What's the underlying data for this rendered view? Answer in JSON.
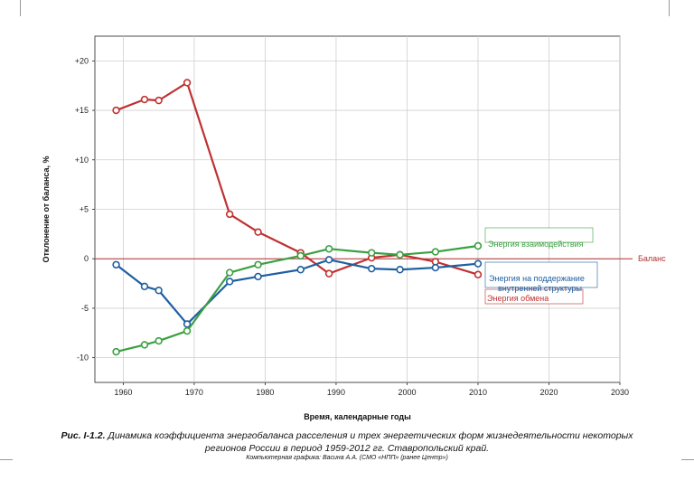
{
  "chart_data": {
    "type": "line",
    "xlabel": "Время, календарные годы",
    "ylabel": "Отклонение от баланса, %",
    "xlim": [
      1956,
      2030
    ],
    "ylim": [
      -12.5,
      22.5
    ],
    "x_ticks": [
      1960,
      1970,
      1980,
      1990,
      2000,
      2010,
      2020,
      2030
    ],
    "y_ticks": [
      {
        "value": 20,
        "label": "+20"
      },
      {
        "value": 15,
        "label": "+15"
      },
      {
        "value": 10,
        "label": "+10"
      },
      {
        "value": 5,
        "label": "+5"
      },
      {
        "value": 0,
        "label": "0"
      },
      {
        "value": -5,
        "label": "-5"
      },
      {
        "value": -10,
        "label": "-10"
      }
    ],
    "grid": true,
    "baseline": {
      "value": 0,
      "label": "Баланс",
      "color": "#b03030"
    },
    "series": [
      {
        "name": "Энергия обмена",
        "color": "#c03030",
        "x": [
          1959,
          1963,
          1965,
          1969,
          1975,
          1979,
          1985,
          1989,
          1995,
          1999,
          2004,
          2010
        ],
        "y": [
          15.0,
          16.1,
          16.0,
          17.8,
          4.5,
          2.7,
          0.6,
          -1.5,
          0.1,
          0.4,
          -0.3,
          -1.6
        ]
      },
      {
        "name": "Энергия на поддержание внутренней структуры",
        "name_lines": [
          "Энергия на поддержание",
          "внутренней структуры"
        ],
        "color": "#1f5fa0",
        "x": [
          1959,
          1963,
          1965,
          1969,
          1975,
          1979,
          1985,
          1989,
          1995,
          1999,
          2004,
          2010
        ],
        "y": [
          -0.6,
          -2.8,
          -3.2,
          -6.6,
          -2.3,
          -1.8,
          -1.1,
          -0.1,
          -1.0,
          -1.1,
          -0.9,
          -0.5
        ]
      },
      {
        "name": "Энергия взаимодействия",
        "color": "#3aa040",
        "x": [
          1959,
          1963,
          1965,
          1969,
          1975,
          1979,
          1985,
          1989,
          1995,
          1999,
          2004,
          2010
        ],
        "y": [
          -9.4,
          -8.7,
          -8.3,
          -7.3,
          -1.4,
          -0.6,
          0.3,
          1.0,
          0.6,
          0.4,
          0.7,
          1.3
        ]
      }
    ]
  },
  "caption": {
    "prefix": "Рис. I-1.2.",
    "line1": "Динамика коэффициента энергобаланса расселения и трех энергетических форм жизнедеятельности некоторых",
    "line2": "регионов России в период 1959-2012 гг. Ставропольский край.",
    "line3": "Компьютерная графика: Васина А.А. (СМО «НПП» (ранее Центр»)"
  }
}
